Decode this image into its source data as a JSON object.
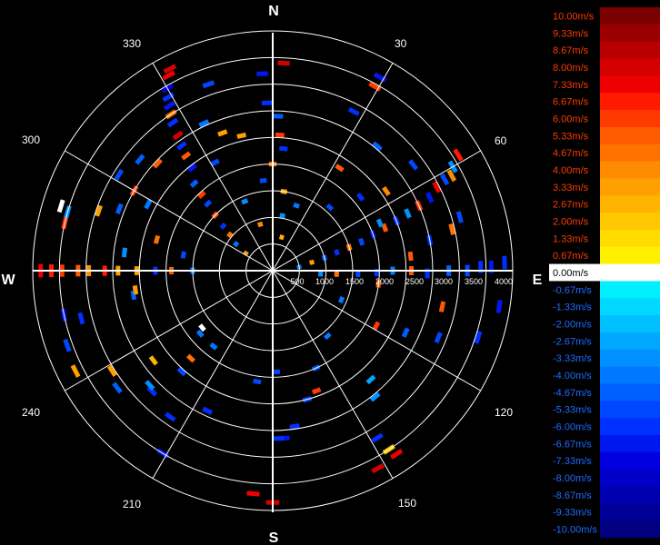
{
  "colors": {
    "background": "#000000",
    "grid": "#ffffff",
    "text": "#ffffff"
  },
  "chart_data": {
    "type": "polar-radial-velocity",
    "compass_labels": [
      "N",
      "E",
      "S",
      "W"
    ],
    "angle_labels": [
      "30",
      "60",
      "120",
      "150",
      "210",
      "240",
      "300",
      "330"
    ],
    "range_labels": [
      "500",
      "1000",
      "1500",
      "2000",
      "2500",
      "3000",
      "3500",
      "4000"
    ],
    "range_max": 4500,
    "grid": true,
    "legend": {
      "placement": "right",
      "labels": [
        "10.00m/s",
        "9.33m/s",
        "8.67m/s",
        "8.00m/s",
        "7.33m/s",
        "6.67m/s",
        "6.00m/s",
        "5.33m/s",
        "4.67m/s",
        "4.00m/s",
        "3.33m/s",
        "2.67m/s",
        "2.00m/s",
        "1.33m/s",
        "0.67m/s",
        "0.00m/s",
        "-0.67m/s",
        "-1.33m/s",
        "-2.00m/s",
        "-2.67m/s",
        "-3.33m/s",
        "-4.00m/s",
        "-4.67m/s",
        "-5.33m/s",
        "-6.00m/s",
        "-6.67m/s",
        "-7.33m/s",
        "-8.00m/s",
        "-8.67m/s",
        "-9.33m/s",
        "-10.00m/s"
      ],
      "colors": [
        "#7a0000",
        "#9a0000",
        "#b80000",
        "#d40000",
        "#ee0000",
        "#ff1a00",
        "#ff3a00",
        "#ff5a00",
        "#ff7200",
        "#ff8c00",
        "#ffa000",
        "#ffb400",
        "#ffc800",
        "#ffdc00",
        "#fff000",
        "#ffffff",
        "#00f0ff",
        "#00d8ff",
        "#00c0ff",
        "#00a8ff",
        "#0090ff",
        "#0078ff",
        "#0060ff",
        "#0048ff",
        "#0030ff",
        "#0018f0",
        "#0000e0",
        "#0000c8",
        "#0000b0",
        "#000098",
        "#000080"
      ]
    },
    "points": [
      {
        "az": 333,
        "r": 4250,
        "v": 8.0
      },
      {
        "az": 332,
        "r": 4150,
        "v": 7.3
      },
      {
        "az": 330,
        "r": 3950,
        "v": -7.3
      },
      {
        "az": 329,
        "r": 3800,
        "v": -6.0
      },
      {
        "az": 328,
        "r": 3650,
        "v": -6.7
      },
      {
        "az": 327,
        "r": 3500,
        "v": 4.7
      },
      {
        "az": 326,
        "r": 3350,
        "v": -6.0
      },
      {
        "az": 325,
        "r": 3100,
        "v": 8.0
      },
      {
        "az": 324,
        "r": 2900,
        "v": -6.0
      },
      {
        "az": 323,
        "r": 2700,
        "v": 5.3
      },
      {
        "az": 322,
        "r": 2450,
        "v": -6.7
      },
      {
        "az": 318,
        "r": 2200,
        "v": -4.7
      },
      {
        "az": 317,
        "r": 1950,
        "v": 6.0
      },
      {
        "az": 316,
        "r": 1750,
        "v": -5.3
      },
      {
        "az": 314,
        "r": 1500,
        "v": 5.3
      },
      {
        "az": 312,
        "r": 1250,
        "v": -6.0
      },
      {
        "az": 310,
        "r": 1050,
        "v": 4.7
      },
      {
        "az": 306,
        "r": 850,
        "v": -4.0
      },
      {
        "az": 303,
        "r": 600,
        "v": 3.3
      },
      {
        "az": 302,
        "r": 3400,
        "v": -5.3
      },
      {
        "az": 300,
        "r": 3000,
        "v": 6.0
      },
      {
        "az": 298,
        "r": 2650,
        "v": -4.0
      },
      {
        "az": 310,
        "r": 3250,
        "v": -4.7
      },
      {
        "az": 313,
        "r": 2950,
        "v": 5.3
      },
      {
        "az": 335,
        "r": 3050,
        "v": -4.0
      },
      {
        "az": 340,
        "r": 2750,
        "v": 3.3
      },
      {
        "az": 332,
        "r": 2300,
        "v": -5.3
      },
      {
        "az": 338,
        "r": 1400,
        "v": -3.3
      },
      {
        "az": 341,
        "r": 3700,
        "v": -5.3
      },
      {
        "az": 345,
        "r": 900,
        "v": 4.0
      },
      {
        "az": 357,
        "r": 3700,
        "v": -6.7
      },
      {
        "az": 358,
        "r": 3150,
        "v": -6.0
      },
      {
        "az": 2,
        "r": 2900,
        "v": -4.7
      },
      {
        "az": 3,
        "r": 3900,
        "v": 8.0
      },
      {
        "az": 3,
        "r": 2550,
        "v": 6.0
      },
      {
        "az": 5,
        "r": 2300,
        "v": -6.0
      },
      {
        "az": 8,
        "r": 1500,
        "v": 3.3
      },
      {
        "az": 10,
        "r": 1050,
        "v": -3.3
      },
      {
        "az": 15,
        "r": 650,
        "v": 2.7
      },
      {
        "az": 0,
        "r": 2000,
        "v": 4.7
      },
      {
        "az": 347,
        "r": 2600,
        "v": 3.3
      },
      {
        "az": 354,
        "r": 1700,
        "v": -5.3
      },
      {
        "az": 29,
        "r": 4150,
        "v": -6.7
      },
      {
        "az": 29,
        "r": 3950,
        "v": 6.0
      },
      {
        "az": 27,
        "r": 3350,
        "v": -6.0
      },
      {
        "az": 33,
        "r": 2300,
        "v": 5.3
      },
      {
        "az": 40,
        "r": 3050,
        "v": -4.7
      },
      {
        "az": 42,
        "r": 1600,
        "v": -5.3
      },
      {
        "az": 20,
        "r": 1300,
        "v": -4.0
      },
      {
        "az": 58,
        "r": 4100,
        "v": 6.7
      },
      {
        "az": 60,
        "r": 3900,
        "v": -3.3
      },
      {
        "az": 62,
        "r": 3800,
        "v": 4.0
      },
      {
        "az": 62,
        "r": 3650,
        "v": -5.3
      },
      {
        "az": 63,
        "r": 3450,
        "v": 7.3
      },
      {
        "az": 65,
        "r": 3250,
        "v": -6.7
      },
      {
        "az": 66,
        "r": 3000,
        "v": 6.0
      },
      {
        "az": 67,
        "r": 2750,
        "v": -3.3
      },
      {
        "az": 68,
        "r": 2500,
        "v": -6.0
      },
      {
        "az": 69,
        "r": 2250,
        "v": 5.3
      },
      {
        "az": 70,
        "r": 2000,
        "v": -6.7
      },
      {
        "az": 72,
        "r": 1750,
        "v": -5.3
      },
      {
        "az": 73,
        "r": 1500,
        "v": 4.7
      },
      {
        "az": 74,
        "r": 1250,
        "v": -6.0
      },
      {
        "az": 76,
        "r": 1000,
        "v": -4.7
      },
      {
        "az": 78,
        "r": 750,
        "v": 3.3
      },
      {
        "az": 82,
        "r": 500,
        "v": -4.0
      },
      {
        "az": 53,
        "r": 3300,
        "v": -5.3
      },
      {
        "az": 55,
        "r": 2600,
        "v": 4.0
      },
      {
        "az": 50,
        "r": 2150,
        "v": -6.0
      },
      {
        "az": 66,
        "r": 2200,
        "v": -3.3
      },
      {
        "az": 74,
        "r": 3650,
        "v": -5.3
      },
      {
        "az": 77,
        "r": 3450,
        "v": 4.7
      },
      {
        "az": 79,
        "r": 3000,
        "v": -6.0
      },
      {
        "az": 84,
        "r": 2600,
        "v": 5.3
      },
      {
        "az": 89,
        "r": 4100,
        "v": -6.7
      },
      {
        "az": 89,
        "r": 3900,
        "v": -6.0
      },
      {
        "az": 90,
        "r": 3650,
        "v": -5.3
      },
      {
        "az": 90,
        "r": 3300,
        "v": -4.7
      },
      {
        "az": 91,
        "r": 2900,
        "v": -6.0
      },
      {
        "az": 90,
        "r": 2600,
        "v": 5.3
      },
      {
        "az": 90,
        "r": 2250,
        "v": -4.0
      },
      {
        "az": 91,
        "r": 1950,
        "v": -6.0
      },
      {
        "az": 92,
        "r": 1600,
        "v": -5.3
      },
      {
        "az": 93,
        "r": 1200,
        "v": 4.7
      },
      {
        "az": 94,
        "r": 900,
        "v": -3.3
      },
      {
        "az": 88,
        "r": 4350,
        "v": -6.0
      },
      {
        "az": 97,
        "r": 2000,
        "v": 5.3
      },
      {
        "az": 99,
        "r": 4300,
        "v": -6.7
      },
      {
        "az": 102,
        "r": 3250,
        "v": 5.3
      },
      {
        "az": 108,
        "r": 4050,
        "v": -6.0
      },
      {
        "az": 112,
        "r": 3350,
        "v": -5.3
      },
      {
        "az": 115,
        "r": 2750,
        "v": -4.7
      },
      {
        "az": 118,
        "r": 2200,
        "v": 6.0
      },
      {
        "az": 113,
        "r": 1400,
        "v": -4.0
      },
      {
        "az": 138,
        "r": 2750,
        "v": -2.7
      },
      {
        "az": 141,
        "r": 3050,
        "v": -3.3
      },
      {
        "az": 146,
        "r": 4150,
        "v": 7.3
      },
      {
        "az": 147,
        "r": 4000,
        "v": 2.0
      },
      {
        "az": 148,
        "r": 3700,
        "v": -6.0
      },
      {
        "az": 152,
        "r": 4200,
        "v": 8.0
      },
      {
        "az": 156,
        "r": 2000,
        "v": -4.7
      },
      {
        "az": 160,
        "r": 2400,
        "v": 6.0
      },
      {
        "az": 165,
        "r": 2500,
        "v": -5.3
      },
      {
        "az": 140,
        "r": 1600,
        "v": -4.0
      },
      {
        "az": 172,
        "r": 2950,
        "v": -6.0
      },
      {
        "az": 176,
        "r": 3150,
        "v": -6.7
      },
      {
        "az": 178,
        "r": 3150,
        "v": -6.0
      },
      {
        "az": 178,
        "r": 1900,
        "v": -5.3
      },
      {
        "az": 185,
        "r": 4200,
        "v": 7.3
      },
      {
        "az": 180,
        "r": 4350,
        "v": 8.0
      },
      {
        "az": 188,
        "r": 2100,
        "v": -5.3
      },
      {
        "az": 205,
        "r": 2900,
        "v": -6.0
      },
      {
        "az": 211,
        "r": 4000,
        "v": -6.7
      },
      {
        "az": 215,
        "r": 3350,
        "v": -6.0
      },
      {
        "az": 222,
        "r": 2550,
        "v": -5.3
      },
      {
        "az": 223,
        "r": 2250,
        "v": 4.7
      },
      {
        "az": 225,
        "r": 3200,
        "v": -6.0
      },
      {
        "az": 227,
        "r": 3150,
        "v": -3.3
      },
      {
        "az": 229,
        "r": 1800,
        "v": -4.0
      },
      {
        "az": 231,
        "r": 1700,
        "v": 0.0
      },
      {
        "az": 233,
        "r": 3650,
        "v": -4.7
      },
      {
        "az": 238,
        "r": 3550,
        "v": 3.3
      },
      {
        "az": 233,
        "r": 2800,
        "v": 2.7
      },
      {
        "az": 218,
        "r": 1800,
        "v": -4.0
      },
      {
        "az": 243,
        "r": 4150,
        "v": 3.3
      },
      {
        "az": 250,
        "r": 4100,
        "v": -5.3
      },
      {
        "az": 256,
        "r": 3700,
        "v": -6.0
      },
      {
        "az": 260,
        "r": 2650,
        "v": -4.7
      },
      {
        "az": 262,
        "r": 2600,
        "v": 3.3
      },
      {
        "az": 258,
        "r": 4000,
        "v": -6.7
      },
      {
        "az": 270,
        "r": 4350,
        "v": 7.3
      },
      {
        "az": 270,
        "r": 4150,
        "v": 6.7
      },
      {
        "az": 270,
        "r": 3950,
        "v": 6.0
      },
      {
        "az": 270,
        "r": 3650,
        "v": 5.3
      },
      {
        "az": 270,
        "r": 3450,
        "v": 4.0
      },
      {
        "az": 270,
        "r": 3150,
        "v": 6.7
      },
      {
        "az": 270,
        "r": 2900,
        "v": 3.3
      },
      {
        "az": 270,
        "r": 2550,
        "v": 3.3
      },
      {
        "az": 270,
        "r": 2200,
        "v": -6.0
      },
      {
        "az": 270,
        "r": 1900,
        "v": 5.3
      },
      {
        "az": 270,
        "r": 1500,
        "v": -4.0
      },
      {
        "az": 283,
        "r": 4000,
        "v": 6.0
      },
      {
        "az": 286,
        "r": 4000,
        "v": -3.3
      },
      {
        "az": 287,
        "r": 4150,
        "v": 0.0
      },
      {
        "az": 289,
        "r": 3450,
        "v": 3.3
      },
      {
        "az": 292,
        "r": 3100,
        "v": -4.7
      },
      {
        "az": 285,
        "r": 2250,
        "v": 4.7
      },
      {
        "az": 277,
        "r": 2800,
        "v": -3.3
      },
      {
        "az": 280,
        "r": 1700,
        "v": -5.3
      }
    ]
  }
}
